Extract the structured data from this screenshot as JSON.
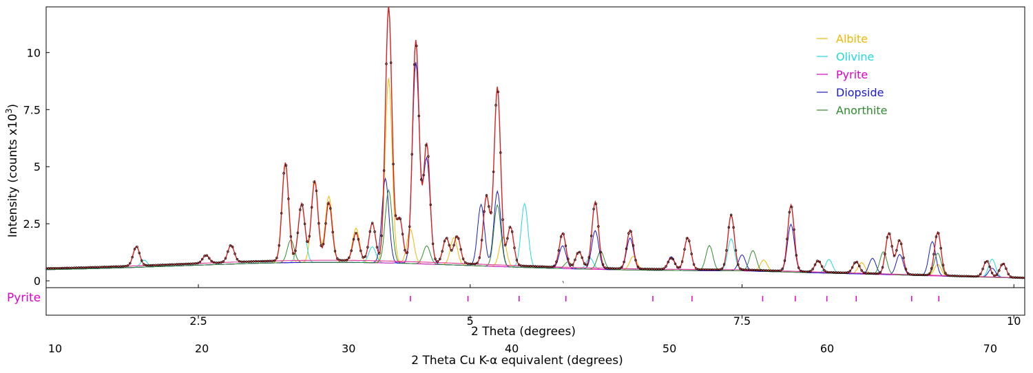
{
  "chart_data": {
    "type": "line",
    "title": "",
    "xlabel": "2 Theta (degrees)",
    "xlabel2": "2 Theta Cu K-α equivalent (degrees)",
    "ylabel": "Intensity (counts x10",
    "ylabel_exponent": "3",
    "ylabel_close": ")",
    "xlim": [
      1.1,
      10.1
    ],
    "ylim": [
      -0.3,
      12.0
    ],
    "x_ticks": [
      2.5,
      5,
      7.5,
      10
    ],
    "x_tick_labels": [
      "2.5",
      "5",
      "7.5",
      "10"
    ],
    "x2_ticks": [
      10,
      20,
      30,
      40,
      50,
      60,
      70
    ],
    "x2_tick_labels": [
      "10",
      "20",
      "30",
      "40",
      "50",
      "60",
      "70"
    ],
    "x2_positions": [
      1.1,
      2.45,
      3.8,
      5.3,
      6.75,
      8.2,
      9.7
    ],
    "y_ticks": [
      0,
      2.5,
      5,
      7.5,
      10
    ],
    "y_tick_labels": [
      "0",
      "2.5",
      "5",
      "7.5",
      "10"
    ],
    "grid": false,
    "legend_position": "top-right",
    "colors": {
      "observed": "#000000",
      "calculated": "#d62020",
      "background": "#e0409a",
      "difference": "#555555"
    },
    "series": [
      {
        "name": "Albite",
        "color": "#f0b800",
        "peaks": [
          [
            3.3,
            4.3
          ],
          [
            3.57,
            3.5
          ],
          [
            3.7,
            2.9
          ],
          [
            3.95,
            1.5
          ],
          [
            4.25,
            8.1
          ],
          [
            4.45,
            1.5
          ],
          [
            4.85,
            1.2
          ],
          [
            5.3,
            1.3
          ],
          [
            6.5,
            0.6
          ],
          [
            7.7,
            0.5
          ],
          [
            8.6,
            0.5
          ],
          [
            9.3,
            0.5
          ]
        ]
      },
      {
        "name": "Olivine",
        "color": "#22d8d8",
        "peaks": [
          [
            2.0,
            0.3
          ],
          [
            3.45,
            2.5
          ],
          [
            4.1,
            0.7
          ],
          [
            5.5,
            2.8
          ],
          [
            6.1,
            0.5
          ],
          [
            7.4,
            1.4
          ],
          [
            8.3,
            0.6
          ],
          [
            9.8,
            0.8
          ]
        ]
      },
      {
        "name": "Pyrite",
        "color": "#e000c8",
        "peaks": [
          [
            4.35,
            0.05
          ],
          [
            5.8,
            0.05
          ]
        ]
      },
      {
        "name": "Diopside",
        "color": "#1a1acc",
        "peaks": [
          [
            4.22,
            3.7
          ],
          [
            4.5,
            8.8
          ],
          [
            4.6,
            4.6
          ],
          [
            5.1,
            2.7
          ],
          [
            5.25,
            3.3
          ],
          [
            5.85,
            1.0
          ],
          [
            6.15,
            1.7
          ],
          [
            6.47,
            1.4
          ],
          [
            6.85,
            0.6
          ],
          [
            7.5,
            0.7
          ],
          [
            7.95,
            2.1
          ],
          [
            8.7,
            0.7
          ],
          [
            8.95,
            0.9
          ],
          [
            9.25,
            1.5
          ],
          [
            9.8,
            0.4
          ]
        ]
      },
      {
        "name": "Anorthite",
        "color": "#2e8b2e",
        "peaks": [
          [
            3.35,
            1.0
          ],
          [
            4.25,
            3.2
          ],
          [
            4.6,
            0.8
          ],
          [
            5.25,
            2.7
          ],
          [
            5.9,
            0.3
          ],
          [
            6.2,
            0.8
          ],
          [
            7.2,
            1.1
          ],
          [
            7.6,
            0.9
          ],
          [
            8.2,
            0.5
          ],
          [
            8.55,
            0.5
          ],
          [
            8.8,
            1.0
          ],
          [
            9.3,
            1.0
          ]
        ]
      }
    ],
    "observed_peaks": [
      [
        1.93,
        0.85
      ],
      [
        2.57,
        0.35
      ],
      [
        2.8,
        0.75
      ],
      [
        3.3,
        4.3
      ],
      [
        3.45,
        2.5
      ],
      [
        3.57,
        3.5
      ],
      [
        3.7,
        2.55
      ],
      [
        3.95,
        1.2
      ],
      [
        4.1,
        1.65
      ],
      [
        4.25,
        11.2
      ],
      [
        4.35,
        1.9
      ],
      [
        4.5,
        9.7
      ],
      [
        4.6,
        5.2
      ],
      [
        4.78,
        1.1
      ],
      [
        4.88,
        1.2
      ],
      [
        5.15,
        3.0
      ],
      [
        5.25,
        7.8
      ],
      [
        5.37,
        1.7
      ],
      [
        5.85,
        1.5
      ],
      [
        6.0,
        0.7
      ],
      [
        6.15,
        2.9
      ],
      [
        6.47,
        1.7
      ],
      [
        6.85,
        0.5
      ],
      [
        7.0,
        1.4
      ],
      [
        7.4,
        2.4
      ],
      [
        7.95,
        2.9
      ],
      [
        8.2,
        0.5
      ],
      [
        8.55,
        0.5
      ],
      [
        8.85,
        1.8
      ],
      [
        8.95,
        1.5
      ],
      [
        9.3,
        1.9
      ],
      [
        9.75,
        0.7
      ],
      [
        9.9,
        0.6
      ]
    ],
    "reflection_markers": {
      "label": "Pyrite",
      "color": "#e000c8",
      "positions": [
        4.45,
        4.98,
        5.45,
        5.88,
        6.68,
        7.04,
        7.69,
        7.99,
        8.28,
        8.55,
        9.06,
        9.31
      ]
    }
  }
}
